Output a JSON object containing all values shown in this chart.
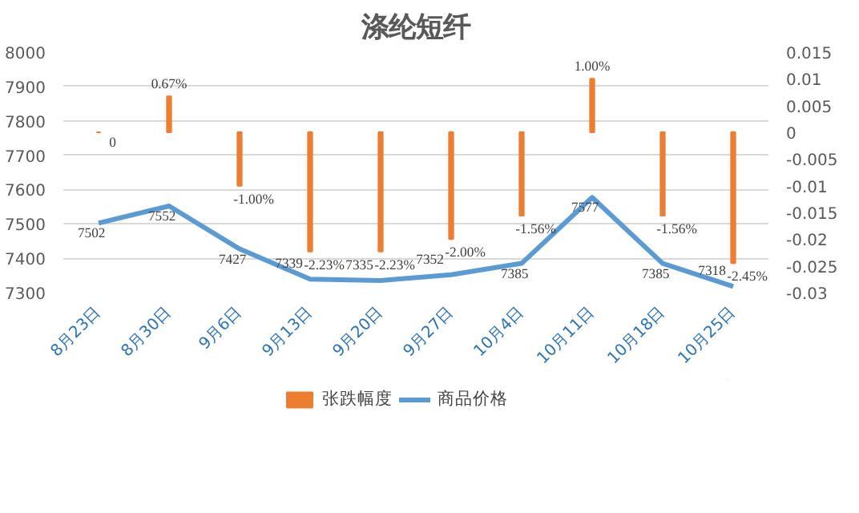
{
  "chart_data": {
    "type": "bar",
    "title": "涤纶短纤",
    "categories": [
      "8月23日",
      "8月30日",
      "9月6日",
      "9月13日",
      "9月20日",
      "9月27日",
      "10月4日",
      "10月11日",
      "10月18日",
      "10月25日"
    ],
    "series": [
      {
        "name": "张跌幅度",
        "axis": "y2",
        "color": "#ed7d31",
        "values": [
          0,
          0.0067,
          -0.01,
          -0.0223,
          -0.0223,
          -0.02,
          -0.0156,
          0.01,
          -0.0156,
          -0.0245
        ],
        "value_labels": [
          "0",
          "0.67%",
          "-1.00%",
          "-2.23%",
          "-2.23%",
          "-2.00%",
          "-1.56%",
          "1.00%",
          "-1.56%",
          "-2.45%"
        ]
      },
      {
        "name": "商品价格",
        "type": "line",
        "color": "#5b9bd5",
        "values": [
          7502,
          7552,
          7427,
          7339,
          7335,
          7352,
          7385,
          7577,
          7385,
          7318
        ],
        "value_labels": [
          "7502",
          "7552",
          "7427",
          "7339",
          "7335",
          "7352",
          "7385",
          "7577",
          "7385",
          "7318"
        ]
      }
    ],
    "ylim": [
      7300,
      8000
    ],
    "yticks": [
      7300,
      7400,
      7500,
      7600,
      7700,
      7800,
      7900,
      8000
    ],
    "y2lim": [
      -0.03,
      0.015
    ],
    "y2ticks": [
      -0.03,
      -0.025,
      -0.02,
      -0.015,
      -0.01,
      -0.005,
      0,
      0.005,
      0.01,
      0.015
    ],
    "grid": "y",
    "legend": "bottom"
  }
}
